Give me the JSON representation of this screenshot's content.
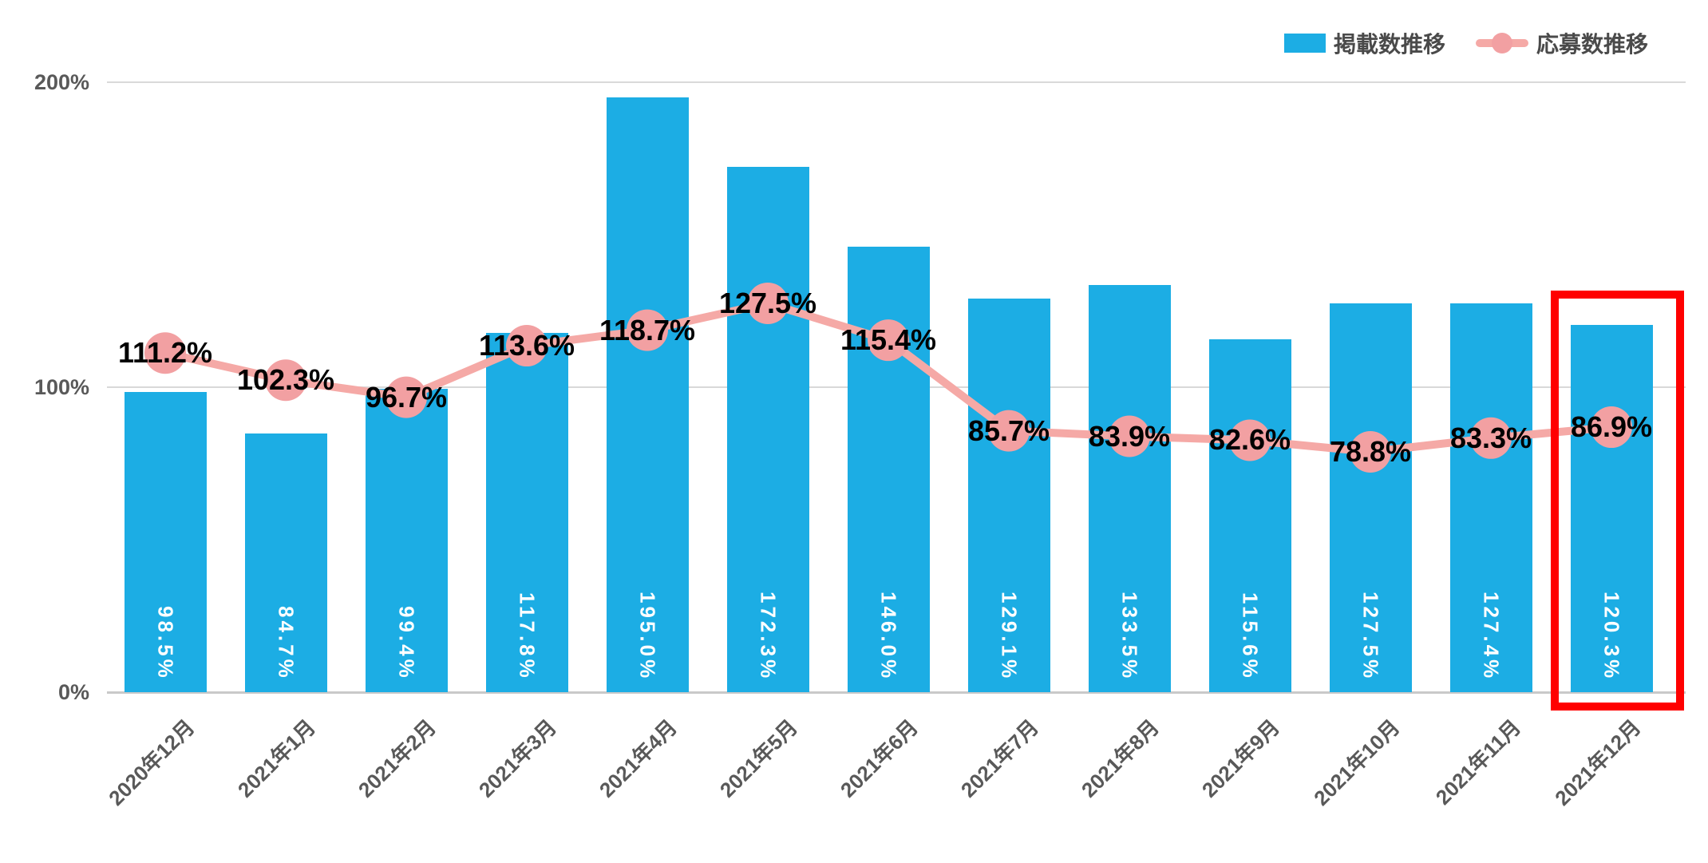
{
  "chart_data": {
    "type": "combo-bar-line",
    "title": "",
    "categories": [
      "2020年12月",
      "2021年1月",
      "2021年2月",
      "2021年3月",
      "2021年4月",
      "2021年5月",
      "2021年6月",
      "2021年7月",
      "2021年8月",
      "2021年9月",
      "2021年10月",
      "2021年11月",
      "2021年12月"
    ],
    "series": [
      {
        "name": "掲載数推移",
        "type": "bar",
        "color": "#1CADE4",
        "label_color": "#FFFFFF",
        "values": [
          98.5,
          84.7,
          99.4,
          117.8,
          195.0,
          172.3,
          146.0,
          129.1,
          133.5,
          115.6,
          127.5,
          127.4,
          120.3
        ],
        "labels": [
          "98.5%",
          "84.7%",
          "99.4%",
          "117.8%",
          "195.0%",
          "172.3%",
          "146.0%",
          "129.1%",
          "133.5%",
          "115.6%",
          "127.5%",
          "127.4%",
          "120.3%"
        ]
      },
      {
        "name": "応募数推移",
        "type": "line",
        "color": "#F5A9A6",
        "marker_color": "#F2A0A2",
        "label_color": "#000000",
        "values": [
          111.2,
          102.3,
          96.7,
          113.6,
          118.7,
          127.5,
          115.4,
          85.7,
          83.9,
          82.6,
          78.8,
          83.3,
          86.9
        ],
        "labels": [
          "111.2%",
          "102.3%",
          "96.7%",
          "113.6%",
          "118.7%",
          "127.5%",
          "115.4%",
          "85.7%",
          "83.9%",
          "82.6%",
          "78.8%",
          "83.3%",
          "86.9%"
        ]
      }
    ],
    "y_axis": {
      "min": 0,
      "max": 200,
      "ticks": [
        {
          "value": 200,
          "label": "200%"
        },
        {
          "value": 100,
          "label": "100%"
        },
        {
          "value": 0,
          "label": "0%"
        }
      ]
    },
    "grid": true,
    "grid_color": "#D9D9D9",
    "axis_line_color": "#C9C9C9",
    "axis_text_color": "#595959",
    "legend_position": "top-right",
    "highlight": {
      "index": 12,
      "category": "2021年12月",
      "color": "#FF0000"
    }
  }
}
